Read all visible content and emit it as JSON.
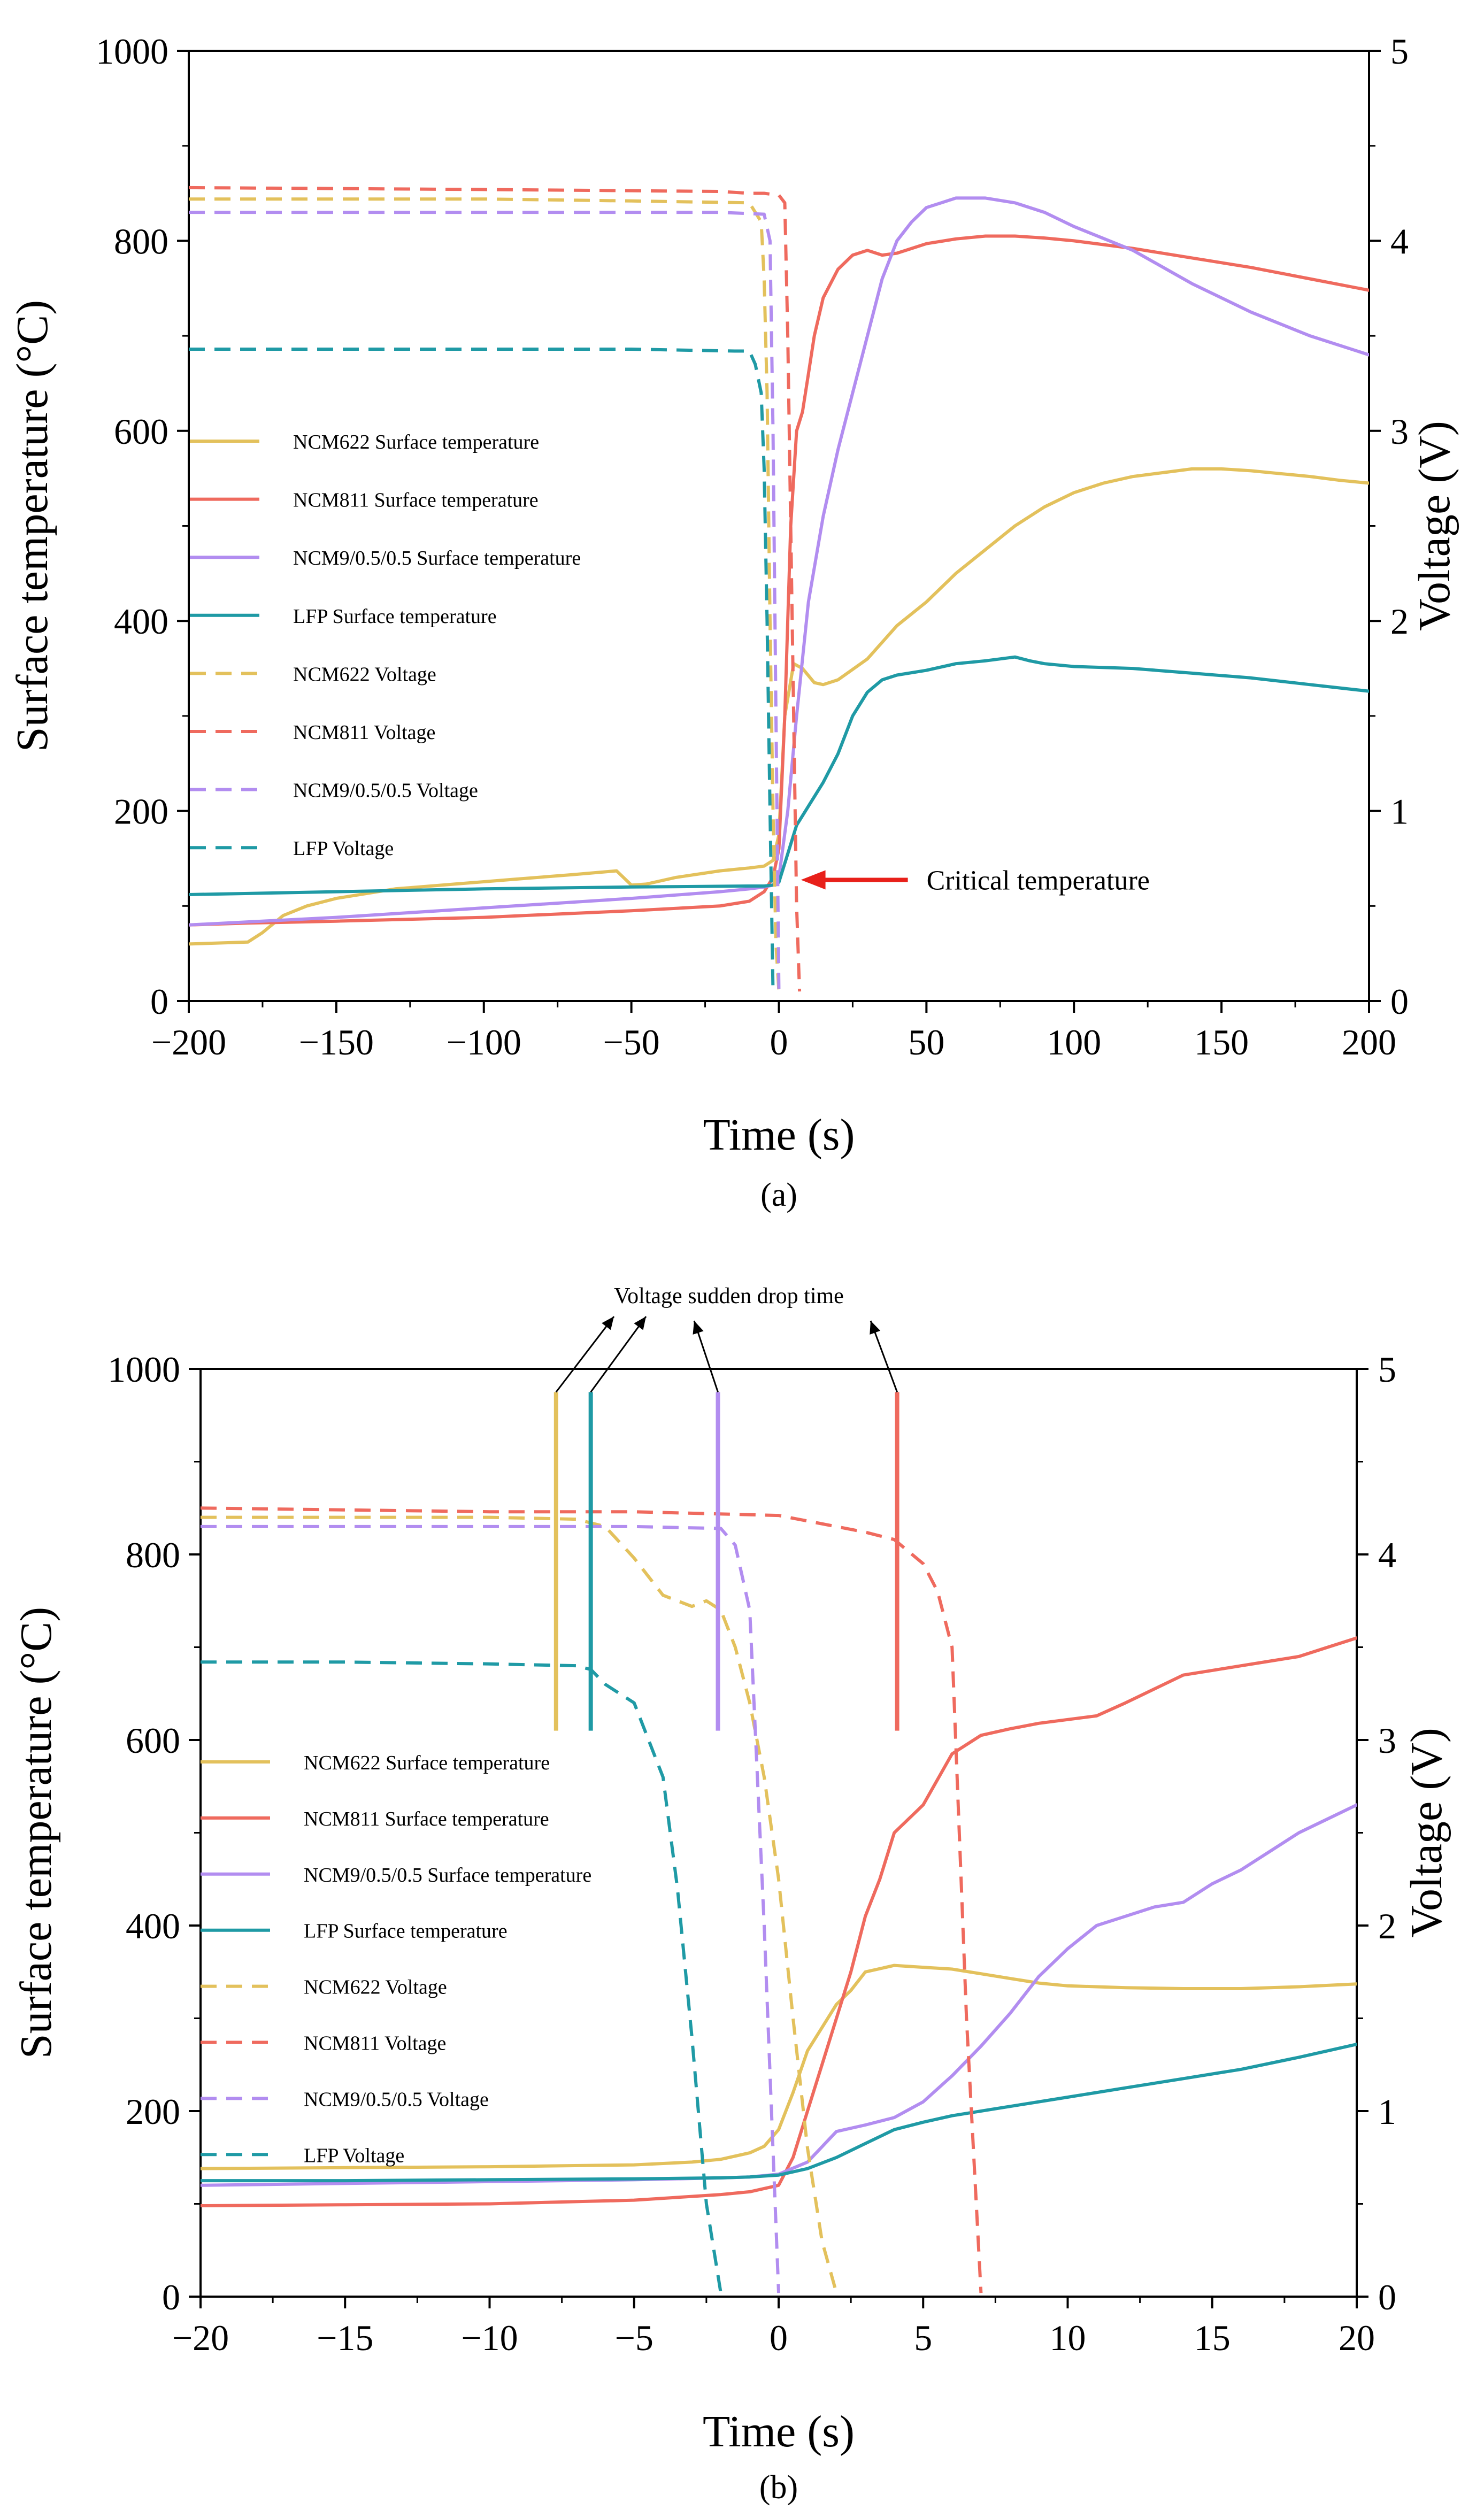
{
  "chart_data": [
    {
      "type": "line",
      "panel_label": "(a)",
      "xlabel": "Time (s)",
      "ylabel": "Surface temperature (°C)",
      "y2label": "Voltage (V)",
      "xlim": [
        -200,
        200
      ],
      "ylim": [
        0,
        1000
      ],
      "y2lim": [
        0,
        5
      ],
      "xticks": [
        -200,
        -150,
        -100,
        -50,
        0,
        50,
        100,
        150,
        200
      ],
      "yticks": [
        0,
        200,
        400,
        600,
        800,
        1000
      ],
      "y2ticks": [
        0,
        1,
        2,
        3,
        4,
        5
      ],
      "legend_position": "center-left",
      "annotation": {
        "text": "Critical temperature",
        "points_to": [
          6,
          150
        ]
      },
      "series": [
        {
          "name": "NCM622 Surface temperature",
          "color": "#e3c15c",
          "style": "solid",
          "axis": "left",
          "x": [
            -200,
            -180,
            -175,
            -168,
            -160,
            -150,
            -130,
            -110,
            -90,
            -70,
            -55,
            -50,
            -45,
            -35,
            -20,
            -10,
            -5,
            -2,
            0,
            2,
            5,
            8,
            12,
            15,
            20,
            30,
            40,
            50,
            60,
            70,
            80,
            90,
            100,
            110,
            120,
            130,
            140,
            150,
            160,
            170,
            180,
            190,
            200
          ],
          "y": [
            60,
            62,
            72,
            90,
            100,
            108,
            118,
            123,
            128,
            133,
            137,
            122,
            123,
            130,
            137,
            140,
            142,
            148,
            175,
            300,
            355,
            350,
            335,
            333,
            338,
            360,
            395,
            420,
            450,
            475,
            500,
            520,
            535,
            545,
            552,
            556,
            560,
            560,
            558,
            555,
            552,
            548,
            545
          ]
        },
        {
          "name": "NCM811 Surface temperature",
          "color": "#ef6a5e",
          "style": "solid",
          "axis": "left",
          "x": [
            -200,
            -180,
            -150,
            -100,
            -50,
            -20,
            -10,
            -5,
            -2,
            0,
            2,
            4,
            6,
            8,
            10,
            12,
            15,
            20,
            25,
            30,
            35,
            40,
            45,
            50,
            60,
            70,
            80,
            90,
            100,
            120,
            140,
            160,
            180,
            200
          ],
          "y": [
            80,
            82,
            84,
            88,
            95,
            100,
            105,
            115,
            130,
            160,
            300,
            500,
            600,
            620,
            660,
            700,
            740,
            770,
            785,
            790,
            785,
            787,
            792,
            797,
            802,
            805,
            805,
            803,
            800,
            792,
            782,
            772,
            760,
            748
          ]
        },
        {
          "name": "NCM9/0.5/0.5 Surface temperature",
          "color": "#b28df0",
          "style": "solid",
          "axis": "left",
          "x": [
            -200,
            -150,
            -100,
            -50,
            -20,
            -10,
            -5,
            -2,
            0,
            3,
            6,
            10,
            15,
            20,
            25,
            30,
            35,
            40,
            45,
            50,
            55,
            60,
            70,
            80,
            90,
            100,
            120,
            140,
            160,
            180,
            200
          ],
          "y": [
            80,
            88,
            98,
            108,
            115,
            118,
            120,
            122,
            130,
            200,
            300,
            420,
            510,
            580,
            640,
            700,
            760,
            800,
            820,
            835,
            840,
            845,
            845,
            840,
            830,
            815,
            790,
            755,
            725,
            700,
            680
          ]
        },
        {
          "name": "LFP Surface temperature",
          "color": "#1f9aa5",
          "style": "solid",
          "axis": "left",
          "x": [
            -200,
            -150,
            -100,
            -50,
            -10,
            -5,
            -2,
            0,
            3,
            6,
            10,
            15,
            20,
            25,
            30,
            35,
            40,
            50,
            60,
            70,
            80,
            85,
            90,
            100,
            120,
            140,
            160,
            180,
            200
          ],
          "y": [
            112,
            115,
            118,
            120,
            121,
            121,
            122,
            125,
            155,
            185,
            205,
            230,
            260,
            300,
            325,
            338,
            343,
            348,
            355,
            358,
            362,
            358,
            355,
            352,
            350,
            345,
            340,
            333,
            326
          ]
        },
        {
          "name": "NCM622 Voltage",
          "color": "#e3c15c",
          "style": "dashed",
          "axis": "right",
          "x": [
            -200,
            -100,
            -50,
            -10,
            -6,
            -5,
            -4,
            -3,
            -2,
            -1,
            0
          ],
          "y": [
            4.22,
            4.22,
            4.21,
            4.2,
            4.1,
            3.8,
            3.2,
            2.0,
            1.0,
            0.3,
            0.05
          ]
        },
        {
          "name": "NCM811 Voltage",
          "color": "#ef6a5e",
          "style": "dashed",
          "axis": "right",
          "x": [
            -200,
            -100,
            -20,
            -10,
            -5,
            0,
            2,
            3,
            4,
            5,
            6,
            7
          ],
          "y": [
            4.28,
            4.27,
            4.26,
            4.25,
            4.25,
            4.24,
            4.2,
            3.5,
            2.5,
            1.5,
            0.5,
            0.05
          ]
        },
        {
          "name": "NCM9/0.5/0.5 Voltage",
          "color": "#b28df0",
          "style": "dashed",
          "axis": "right",
          "x": [
            -200,
            -100,
            -20,
            -5,
            -3,
            -2,
            -1,
            0
          ],
          "y": [
            4.15,
            4.15,
            4.15,
            4.14,
            4.0,
            3.0,
            1.5,
            0.05
          ]
        },
        {
          "name": "LFP Voltage",
          "color": "#1f9aa5",
          "style": "dashed",
          "axis": "right",
          "x": [
            -200,
            -100,
            -50,
            -15,
            -10,
            -8,
            -6,
            -5,
            -4,
            -3,
            -2
          ],
          "y": [
            3.43,
            3.43,
            3.43,
            3.42,
            3.42,
            3.35,
            3.2,
            2.8,
            2.0,
            1.0,
            0.05
          ]
        }
      ]
    },
    {
      "type": "line",
      "panel_label": "(b)",
      "xlabel": "Time (s)",
      "ylabel": "Surface temperature (°C)",
      "y2label": "Voltage (V)",
      "xlim": [
        -20,
        20
      ],
      "ylim": [
        0,
        1000
      ],
      "y2lim": [
        0,
        5
      ],
      "xticks": [
        -20,
        -15,
        -10,
        -5,
        0,
        5,
        10,
        15,
        20
      ],
      "yticks": [
        0,
        200,
        400,
        600,
        800,
        1000
      ],
      "y2ticks": [
        0,
        1,
        2,
        3,
        4,
        5
      ],
      "legend_position": "center-left",
      "annotation": {
        "text": "Voltage sudden drop time"
      },
      "drop_markers": [
        {
          "name": "NCM622",
          "x": -7.7,
          "color": "#e3c15c"
        },
        {
          "name": "LFP",
          "x": -6.5,
          "color": "#1f9aa5"
        },
        {
          "name": "NCM9/0.5/0.5",
          "x": -2.1,
          "color": "#b28df0"
        },
        {
          "name": "NCM811",
          "x": 4.1,
          "color": "#ef6a5e"
        }
      ],
      "series": [
        {
          "name": "NCM622 Surface temperature",
          "color": "#e3c15c",
          "style": "solid",
          "axis": "left",
          "x": [
            -20,
            -15,
            -10,
            -5,
            -3,
            -2,
            -1,
            -0.5,
            0,
            0.5,
            1,
            1.5,
            2,
            2.5,
            3,
            4,
            5,
            6,
            7,
            8,
            9,
            10,
            12,
            14,
            16,
            18,
            20
          ],
          "y": [
            138,
            139,
            140,
            142,
            145,
            148,
            155,
            162,
            180,
            220,
            265,
            290,
            315,
            330,
            350,
            357,
            355,
            353,
            348,
            343,
            338,
            335,
            333,
            332,
            332,
            334,
            337
          ]
        },
        {
          "name": "NCM811 Surface temperature",
          "color": "#ef6a5e",
          "style": "solid",
          "axis": "left",
          "x": [
            -20,
            -15,
            -10,
            -5,
            -3,
            -2,
            -1,
            0,
            0.5,
            1,
            1.5,
            2,
            2.5,
            3,
            3.5,
            4,
            5,
            6,
            7,
            8,
            9,
            10,
            11,
            12,
            13,
            14,
            15,
            16,
            17,
            18,
            19,
            20
          ],
          "y": [
            98,
            99,
            100,
            104,
            108,
            110,
            113,
            120,
            150,
            200,
            250,
            300,
            350,
            410,
            450,
            500,
            530,
            585,
            605,
            612,
            618,
            622,
            626,
            640,
            655,
            670,
            675,
            680,
            685,
            690,
            700,
            710
          ]
        },
        {
          "name": "NCM9/0.5/0.5 Surface temperature",
          "color": "#b28df0",
          "style": "solid",
          "axis": "left",
          "x": [
            -20,
            -15,
            -10,
            -5,
            -2,
            -1,
            0,
            1,
            2,
            3,
            4,
            5,
            6,
            7,
            8,
            9,
            10,
            11,
            12,
            13,
            14,
            15,
            16,
            17,
            18,
            19,
            20
          ],
          "y": [
            120,
            122,
            124,
            126,
            128,
            129,
            132,
            145,
            178,
            185,
            193,
            210,
            238,
            270,
            305,
            345,
            375,
            400,
            410,
            420,
            425,
            445,
            460,
            480,
            500,
            515,
            530
          ]
        },
        {
          "name": "LFP Surface temperature",
          "color": "#1f9aa5",
          "style": "solid",
          "axis": "left",
          "x": [
            -20,
            -15,
            -10,
            -5,
            -2,
            -1,
            0,
            1,
            2,
            3,
            4,
            5,
            6,
            8,
            10,
            12,
            14,
            16,
            18,
            20
          ],
          "y": [
            125,
            125,
            126,
            127,
            128,
            129,
            131,
            138,
            150,
            165,
            180,
            188,
            195,
            205,
            215,
            225,
            235,
            245,
            258,
            272
          ]
        },
        {
          "name": "NCM622 Voltage",
          "color": "#e3c15c",
          "style": "dashed",
          "axis": "right",
          "x": [
            -20,
            -15,
            -10,
            -7,
            -6.5,
            -6,
            -5,
            -4.5,
            -4,
            -3.5,
            -3,
            -2.5,
            -2,
            -1.5,
            -1,
            -0.5,
            0,
            0.5,
            1,
            1.5,
            2
          ],
          "y": [
            4.2,
            4.2,
            4.2,
            4.19,
            4.17,
            4.15,
            3.98,
            3.88,
            3.78,
            3.75,
            3.72,
            3.75,
            3.7,
            3.5,
            3.2,
            2.8,
            2.25,
            1.5,
            0.8,
            0.3,
            0.02
          ]
        },
        {
          "name": "NCM811 Voltage",
          "color": "#ef6a5e",
          "style": "dashed",
          "axis": "right",
          "x": [
            -20,
            -15,
            -10,
            -5,
            0,
            1,
            2,
            3,
            4,
            5,
            5.5,
            6,
            6.5,
            7
          ],
          "y": [
            4.25,
            4.24,
            4.23,
            4.23,
            4.21,
            4.18,
            4.15,
            4.12,
            4.08,
            3.95,
            3.8,
            3.5,
            1.5,
            0.02
          ]
        },
        {
          "name": "NCM9/0.5/0.5 Voltage",
          "color": "#b28df0",
          "style": "dashed",
          "axis": "right",
          "x": [
            -20,
            -10,
            -5,
            -2,
            -1.5,
            -1,
            -0.5,
            0
          ],
          "y": [
            4.15,
            4.15,
            4.15,
            4.14,
            4.05,
            3.7,
            2.0,
            0.02
          ]
        },
        {
          "name": "LFP Voltage",
          "color": "#1f9aa5",
          "style": "dashed",
          "axis": "right",
          "x": [
            -20,
            -15,
            -10,
            -7,
            -6.5,
            -6,
            -5,
            -4.5,
            -4,
            -3.5,
            -3,
            -2.5,
            -2
          ],
          "y": [
            3.42,
            3.42,
            3.41,
            3.4,
            3.38,
            3.3,
            3.2,
            3.0,
            2.8,
            2.2,
            1.4,
            0.5,
            0.02
          ]
        }
      ]
    }
  ]
}
